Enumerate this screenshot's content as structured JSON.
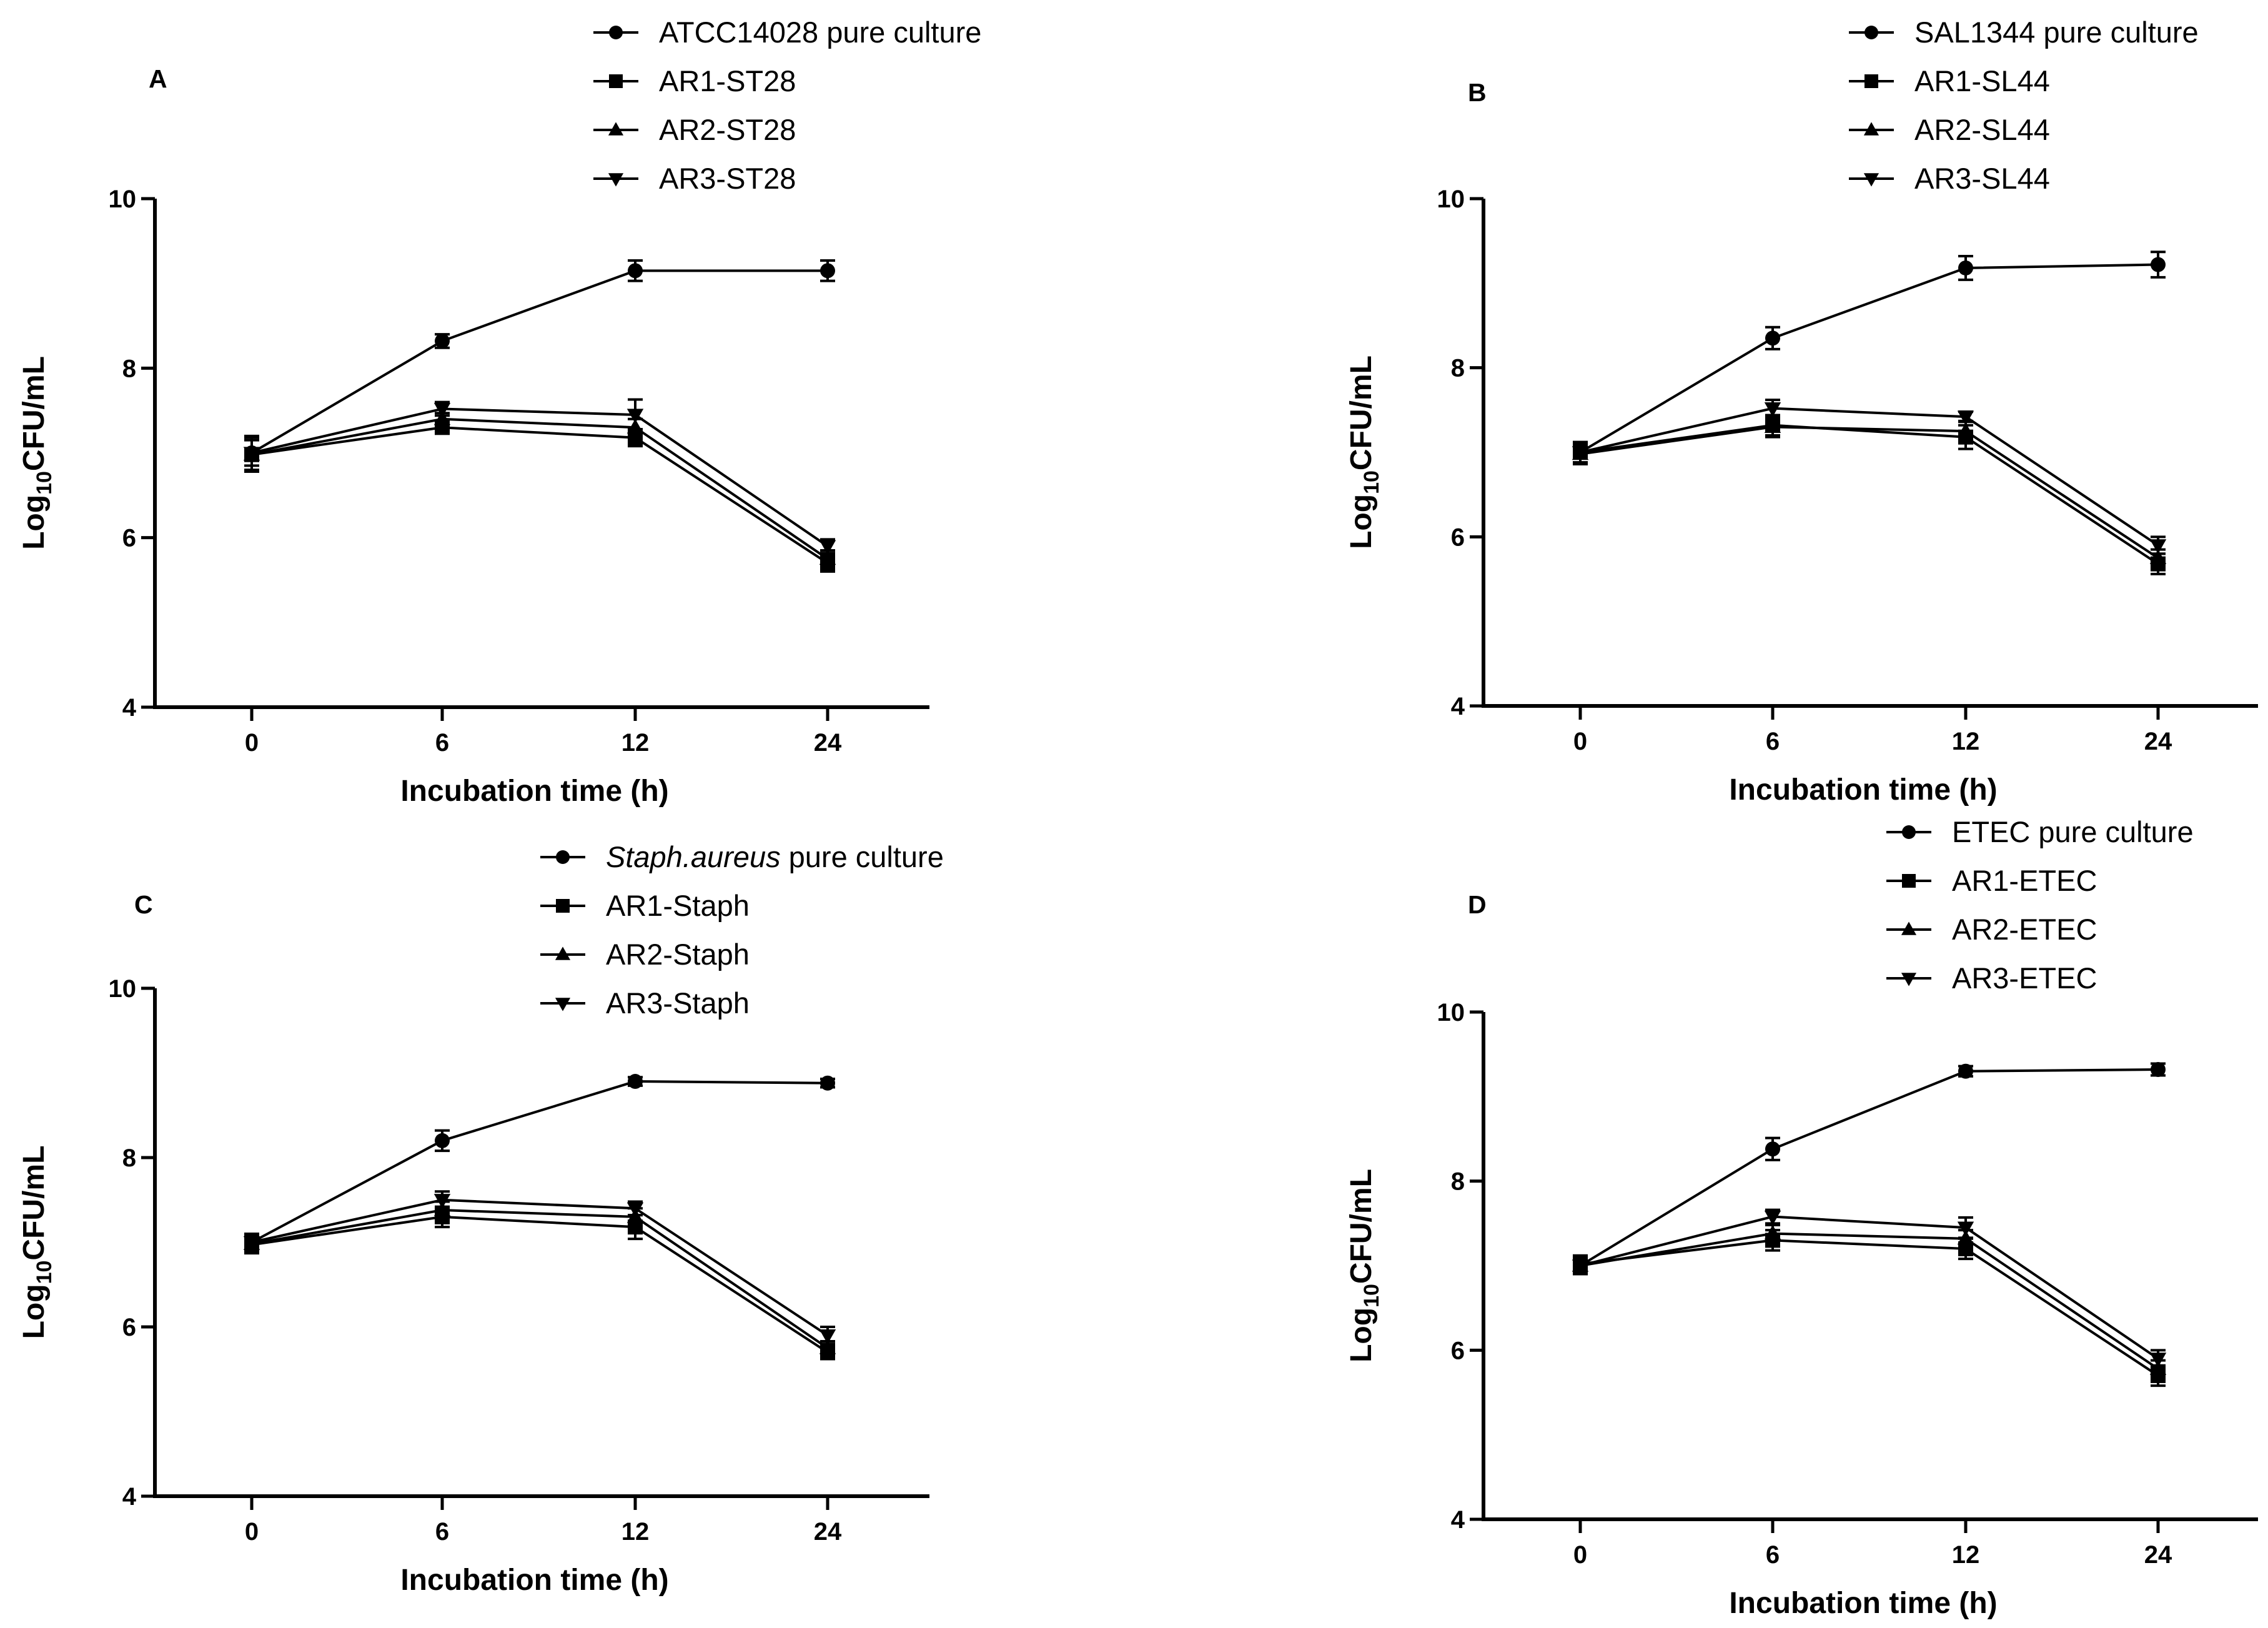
{
  "chart_data": [
    {
      "type": "line",
      "panel_label": "A",
      "x": [
        "0",
        "6",
        "12",
        "24"
      ],
      "xlabel": "Incubation time (h)",
      "ylabel": "Log10CFU/mL",
      "ylabel_parts": {
        "base": "Log",
        "sub": "10",
        "rest": "CFU/mL"
      },
      "ylim": [
        4,
        10
      ],
      "yticks": [
        "4",
        "6",
        "8",
        "10"
      ],
      "grid": false,
      "legend_position": "top",
      "series": [
        {
          "name": "ATCC14028 pure culture",
          "marker": "circle",
          "values": [
            7.0,
            8.32,
            9.15,
            9.15
          ],
          "errors": [
            0.15,
            0.08,
            0.12,
            0.12
          ]
        },
        {
          "name": "AR1-ST28",
          "marker": "square",
          "values": [
            6.98,
            7.3,
            7.18,
            5.7
          ],
          "errors": [
            0.2,
            0.06,
            0.1,
            0.1
          ]
        },
        {
          "name": "AR2-ST28",
          "marker": "triangle-up",
          "values": [
            6.98,
            7.4,
            7.3,
            5.75
          ],
          "errors": [
            0.2,
            0.07,
            0.1,
            0.1
          ]
        },
        {
          "name": "AR3-ST28",
          "marker": "triangle-down",
          "values": [
            7.0,
            7.52,
            7.45,
            5.9
          ],
          "errors": [
            0.2,
            0.08,
            0.18,
            0.08
          ]
        }
      ]
    },
    {
      "type": "line",
      "panel_label": "B",
      "x": [
        "0",
        "6",
        "12",
        "24"
      ],
      "xlabel": "Incubation time (h)",
      "ylabel": "Log10CFU/mL",
      "ylabel_parts": {
        "base": "Log",
        "sub": "10",
        "rest": "CFU/mL"
      },
      "ylim": [
        4,
        10
      ],
      "yticks": [
        "4",
        "6",
        "8",
        "10"
      ],
      "grid": false,
      "legend_position": "top-right",
      "series": [
        {
          "name": "SAL1344 pure culture",
          "marker": "circle",
          "values": [
            7.0,
            8.35,
            9.18,
            9.22
          ],
          "errors": [
            0.12,
            0.13,
            0.14,
            0.15
          ]
        },
        {
          "name": "AR1-SL44",
          "marker": "square",
          "values": [
            7.0,
            7.32,
            7.18,
            5.68
          ],
          "errors": [
            0.12,
            0.12,
            0.14,
            0.12
          ]
        },
        {
          "name": "AR2-SL44",
          "marker": "triangle-up",
          "values": [
            6.98,
            7.3,
            7.25,
            5.75
          ],
          "errors": [
            0.12,
            0.12,
            0.12,
            0.1
          ]
        },
        {
          "name": "AR3-SL44",
          "marker": "triangle-down",
          "values": [
            7.0,
            7.52,
            7.42,
            5.9
          ],
          "errors": [
            0.12,
            0.1,
            0.06,
            0.1
          ]
        }
      ]
    },
    {
      "type": "line",
      "panel_label": "C",
      "x": [
        "0",
        "6",
        "12",
        "24"
      ],
      "xlabel": "Incubation time (h)",
      "ylabel": "Log10CFU/mL",
      "ylabel_parts": {
        "base": "Log",
        "sub": "10",
        "rest": "CFU/mL"
      },
      "ylim": [
        4,
        10
      ],
      "yticks": [
        "4",
        "6",
        "8",
        "10"
      ],
      "grid": false,
      "legend_position": "top",
      "series": [
        {
          "name": "Staph.aureus pure culture",
          "name_italic": "Staph.aureus",
          "name_rest": " pure culture",
          "marker": "circle",
          "values": [
            7.0,
            8.2,
            8.9,
            8.88
          ],
          "errors": [
            0.1,
            0.12,
            0.05,
            0.05
          ]
        },
        {
          "name": "AR1-Staph",
          "marker": "square",
          "values": [
            6.97,
            7.3,
            7.18,
            5.7
          ],
          "errors": [
            0.1,
            0.12,
            0.14,
            0.08
          ]
        },
        {
          "name": "AR2-Staph",
          "marker": "triangle-up",
          "values": [
            6.98,
            7.38,
            7.3,
            5.75
          ],
          "errors": [
            0.1,
            0.1,
            0.1,
            0.08
          ]
        },
        {
          "name": "AR3-Staph",
          "marker": "triangle-down",
          "values": [
            7.0,
            7.5,
            7.4,
            5.9
          ],
          "errors": [
            0.1,
            0.1,
            0.08,
            0.1
          ]
        }
      ]
    },
    {
      "type": "line",
      "panel_label": "D",
      "x": [
        "0",
        "6",
        "12",
        "24"
      ],
      "xlabel": "Incubation time (h)",
      "ylabel": "Log10CFU/mL",
      "ylabel_parts": {
        "base": "Log",
        "sub": "10",
        "rest": "CFU/mL"
      },
      "ylim": [
        4,
        10
      ],
      "yticks": [
        "4",
        "6",
        "8",
        "10"
      ],
      "grid": false,
      "legend_position": "top",
      "series": [
        {
          "name": "ETEC pure culture",
          "marker": "circle",
          "values": [
            7.0,
            8.38,
            9.3,
            9.32
          ],
          "errors": [
            0.1,
            0.13,
            0.06,
            0.07
          ]
        },
        {
          "name": "AR1-ETEC",
          "marker": "square",
          "values": [
            7.02,
            7.3,
            7.2,
            5.7
          ],
          "errors": [
            0.1,
            0.12,
            0.12,
            0.12
          ]
        },
        {
          "name": "AR2-ETEC",
          "marker": "triangle-up",
          "values": [
            7.0,
            7.38,
            7.32,
            5.78
          ],
          "errors": [
            0.1,
            0.1,
            0.1,
            0.1
          ]
        },
        {
          "name": "AR3-ETEC",
          "marker": "triangle-down",
          "values": [
            7.0,
            7.58,
            7.45,
            5.9
          ],
          "errors": [
            0.1,
            0.08,
            0.12,
            0.1
          ]
        }
      ]
    }
  ]
}
